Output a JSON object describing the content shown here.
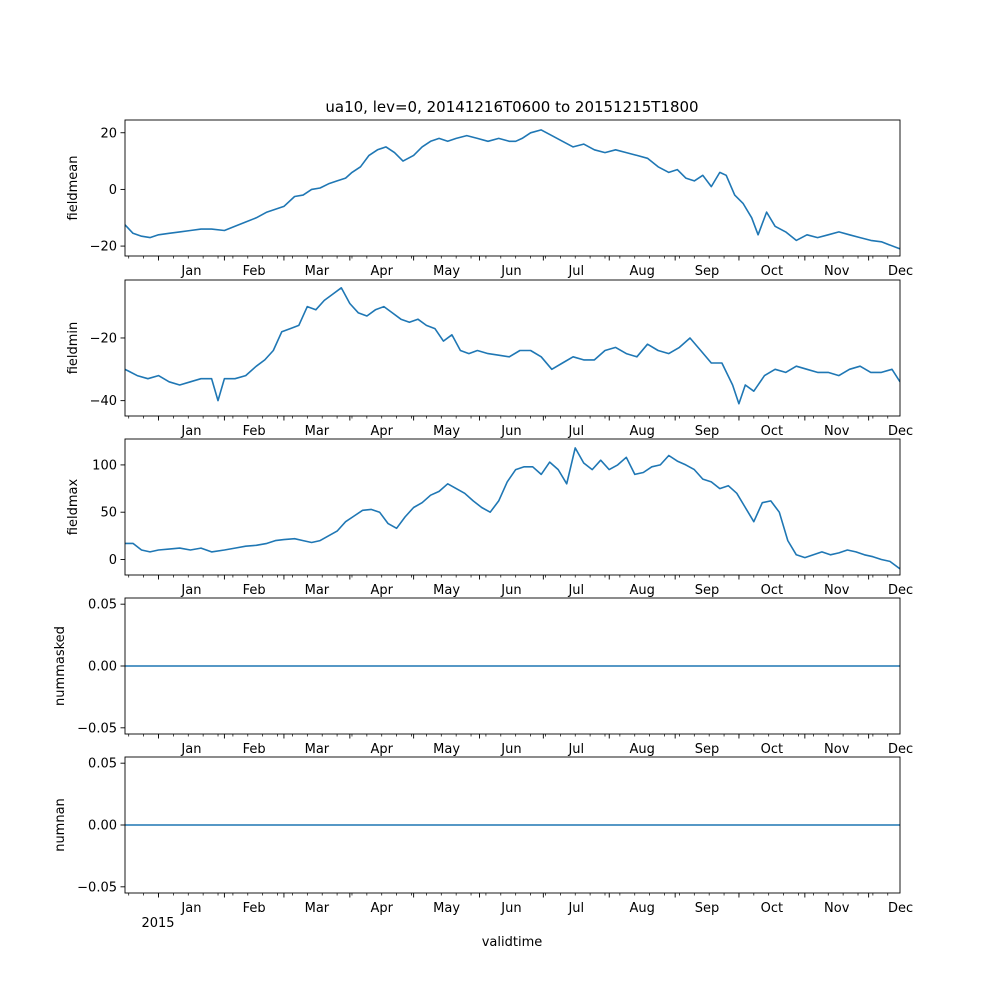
{
  "figure": {
    "title": "ua10, lev=0, 20141216T0600 to 20151215T1800",
    "xlabel": "validtime",
    "year_label": "2015"
  },
  "colors": {
    "line": "#1f77b4",
    "axis": "#000000",
    "background": "#ffffff"
  },
  "chart_data": [
    {
      "type": "line",
      "name": "fieldmean",
      "ylabel": "fieldmean",
      "ylim": [
        -23.5,
        24.5
      ],
      "yticks": [
        -20,
        0,
        20
      ],
      "ytick_labels": [
        "−20",
        "0",
        "20"
      ],
      "xlim_day": [
        -15.75,
        348.75
      ],
      "month_ticks_day": [
        0,
        31,
        59,
        90,
        120,
        151,
        181,
        212,
        243,
        273,
        304,
        334
      ],
      "month_labels": [
        "Jan",
        "Feb",
        "Mar",
        "Apr",
        "May",
        "Jun",
        "Jul",
        "Aug",
        "Sep",
        "Oct",
        "Nov",
        "Dec"
      ],
      "series": [
        {
          "name": "fieldmean",
          "x_day": [
            -15.75,
            -12,
            -8,
            -4,
            0,
            5,
            10,
            15,
            20,
            25,
            31,
            36,
            41,
            46,
            51,
            55,
            59,
            64,
            68,
            72,
            76,
            80,
            84,
            88,
            91,
            95,
            99,
            103,
            107,
            111,
            115,
            120,
            124,
            128,
            132,
            136,
            140,
            145,
            150,
            155,
            160,
            165,
            168,
            171,
            175,
            180,
            185,
            190,
            195,
            200,
            205,
            210,
            215,
            220,
            225,
            230,
            235,
            240,
            244,
            248,
            252,
            256,
            260,
            264,
            267,
            271,
            275,
            279,
            282,
            286,
            290,
            295,
            300,
            305,
            310,
            315,
            320,
            325,
            330,
            335,
            340,
            348.75
          ],
          "values": [
            -12.5,
            -15.5,
            -16.5,
            -17,
            -16,
            -15.5,
            -15,
            -14.5,
            -14,
            -14,
            -14.5,
            -13,
            -11.5,
            -10,
            -8,
            -7,
            -6,
            -2.5,
            -2,
            0,
            0.5,
            2,
            3,
            4,
            6,
            8,
            12,
            14,
            15,
            13,
            10,
            12,
            15,
            17,
            18,
            17,
            18,
            19,
            18,
            17,
            18,
            17,
            17,
            18,
            20,
            21,
            19,
            17,
            15,
            16,
            14,
            13,
            14,
            13,
            12,
            11,
            8,
            6,
            7,
            4,
            3,
            5,
            1,
            6,
            5,
            -2,
            -5,
            -10,
            -16,
            -8,
            -13,
            -15,
            -18,
            -16,
            -17,
            -16,
            -15,
            -16,
            -17,
            -18,
            -18.5,
            -21
          ]
        }
      ]
    },
    {
      "type": "line",
      "name": "fieldmin",
      "ylabel": "fieldmin",
      "ylim": [
        -44.9,
        -1.5
      ],
      "yticks": [
        -40,
        -20
      ],
      "ytick_labels": [
        "−40",
        "−20"
      ],
      "xlim_day": [
        -15.75,
        348.75
      ],
      "month_ticks_day": [
        0,
        31,
        59,
        90,
        120,
        151,
        181,
        212,
        243,
        273,
        304,
        334
      ],
      "month_labels": [
        "Jan",
        "Feb",
        "Mar",
        "Apr",
        "May",
        "Jun",
        "Jul",
        "Aug",
        "Sep",
        "Oct",
        "Nov",
        "Dec"
      ],
      "series": [
        {
          "name": "fieldmin",
          "x_day": [
            -15.75,
            -10,
            -5,
            0,
            5,
            10,
            15,
            20,
            25,
            28,
            31,
            36,
            41,
            46,
            50,
            54,
            58,
            62,
            66,
            70,
            74,
            78,
            82,
            86,
            90,
            94,
            98,
            102,
            106,
            110,
            114,
            118,
            122,
            126,
            130,
            134,
            138,
            142,
            146,
            150,
            155,
            160,
            165,
            170,
            175,
            180,
            185,
            190,
            195,
            200,
            205,
            210,
            215,
            220,
            225,
            230,
            235,
            240,
            245,
            250,
            255,
            260,
            265,
            270,
            273,
            276,
            280,
            285,
            290,
            295,
            300,
            305,
            310,
            315,
            320,
            325,
            330,
            335,
            340,
            345,
            348.75
          ],
          "values": [
            -30,
            -32,
            -33,
            -32,
            -34,
            -35,
            -34,
            -33,
            -33,
            -40,
            -33,
            -33,
            -32,
            -29,
            -27,
            -24,
            -18,
            -17,
            -16,
            -10,
            -11,
            -8,
            -6,
            -4,
            -9,
            -12,
            -13,
            -11,
            -10,
            -12,
            -14,
            -15,
            -14,
            -16,
            -17,
            -21,
            -19,
            -24,
            -25,
            -24,
            -25,
            -25.5,
            -26,
            -24,
            -24,
            -26,
            -30,
            -28,
            -26,
            -27,
            -27,
            -24,
            -23,
            -25,
            -26,
            -22,
            -24,
            -25,
            -23,
            -20,
            -24,
            -28,
            -28,
            -35,
            -41,
            -35,
            -37,
            -32,
            -30,
            -31,
            -29,
            -30,
            -31,
            -31,
            -32,
            -30,
            -29,
            -31,
            -31,
            -30,
            -34
          ]
        }
      ]
    },
    {
      "type": "line",
      "name": "fieldmax",
      "ylabel": "fieldmax",
      "ylim": [
        -16.4,
        127.4
      ],
      "yticks": [
        0,
        50,
        100
      ],
      "ytick_labels": [
        "0",
        "50",
        "100"
      ],
      "xlim_day": [
        -15.75,
        348.75
      ],
      "month_ticks_day": [
        0,
        31,
        59,
        90,
        120,
        151,
        181,
        212,
        243,
        273,
        304,
        334
      ],
      "month_labels": [
        "Jan",
        "Feb",
        "Mar",
        "Apr",
        "May",
        "Jun",
        "Jul",
        "Aug",
        "Sep",
        "Oct",
        "Nov",
        "Dec"
      ],
      "series": [
        {
          "name": "fieldmax",
          "x_day": [
            -15.75,
            -12,
            -8,
            -4,
            0,
            5,
            10,
            15,
            20,
            25,
            31,
            36,
            41,
            46,
            51,
            55,
            59,
            64,
            68,
            72,
            76,
            80,
            84,
            88,
            92,
            96,
            100,
            104,
            108,
            112,
            116,
            120,
            124,
            128,
            132,
            136,
            140,
            144,
            148,
            152,
            156,
            160,
            164,
            168,
            172,
            176,
            180,
            184,
            188,
            192,
            196,
            200,
            204,
            208,
            212,
            216,
            220,
            224,
            228,
            232,
            236,
            240,
            244,
            248,
            252,
            256,
            260,
            264,
            268,
            272,
            276,
            280,
            284,
            288,
            292,
            296,
            300,
            304,
            308,
            312,
            316,
            320,
            324,
            328,
            332,
            336,
            340,
            344,
            348.75
          ],
          "values": [
            17,
            17,
            10,
            8,
            10,
            11,
            12,
            10,
            12,
            8,
            10,
            12,
            14,
            15,
            17,
            20,
            21,
            22,
            20,
            18,
            20,
            25,
            30,
            40,
            46,
            52,
            53,
            50,
            38,
            33,
            45,
            55,
            60,
            68,
            72,
            80,
            75,
            70,
            62,
            55,
            50,
            62,
            82,
            95,
            98,
            98,
            90,
            103,
            95,
            80,
            118,
            102,
            95,
            105,
            95,
            100,
            108,
            90,
            92,
            98,
            100,
            110,
            104,
            100,
            95,
            85,
            82,
            75,
            78,
            70,
            55,
            40,
            60,
            62,
            50,
            20,
            5,
            2,
            5,
            8,
            5,
            7,
            10,
            8,
            5,
            3,
            0,
            -2,
            -10
          ]
        }
      ]
    },
    {
      "type": "line",
      "name": "nummasked",
      "ylabel": "nummasked",
      "ylim": [
        -0.055,
        0.055
      ],
      "yticks": [
        -0.05,
        0,
        0.05
      ],
      "ytick_labels": [
        "−0.05",
        "0.00",
        "0.05"
      ],
      "xlim_day": [
        -15.75,
        348.75
      ],
      "month_ticks_day": [
        0,
        31,
        59,
        90,
        120,
        151,
        181,
        212,
        243,
        273,
        304,
        334
      ],
      "month_labels": [
        "Jan",
        "Feb",
        "Mar",
        "Apr",
        "May",
        "Jun",
        "Jul",
        "Aug",
        "Sep",
        "Oct",
        "Nov",
        "Dec"
      ],
      "series": [
        {
          "name": "nummasked",
          "x_day": [
            -15.75,
            348.75
          ],
          "values": [
            0,
            0
          ]
        }
      ]
    },
    {
      "type": "line",
      "name": "numnan",
      "ylabel": "numnan",
      "ylim": [
        -0.055,
        0.055
      ],
      "yticks": [
        -0.05,
        0,
        0.05
      ],
      "ytick_labels": [
        "−0.05",
        "0.00",
        "0.05"
      ],
      "xlim_day": [
        -15.75,
        348.75
      ],
      "month_ticks_day": [
        0,
        31,
        59,
        90,
        120,
        151,
        181,
        212,
        243,
        273,
        304,
        334
      ],
      "month_labels": [
        "Jan",
        "Feb",
        "Mar",
        "Apr",
        "May",
        "Jun",
        "Jul",
        "Aug",
        "Sep",
        "Oct",
        "Nov",
        "Dec"
      ],
      "series": [
        {
          "name": "numnan",
          "x_day": [
            -15.75,
            348.75
          ],
          "values": [
            0,
            0
          ]
        }
      ]
    }
  ]
}
